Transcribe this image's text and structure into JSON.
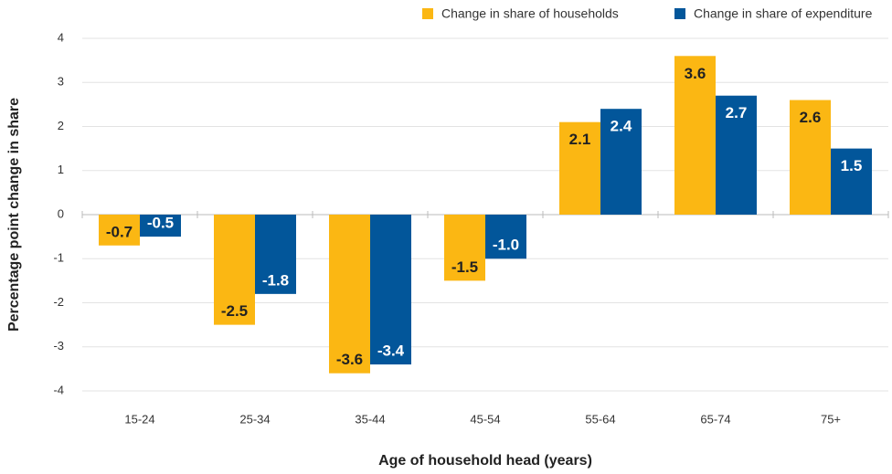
{
  "chart_data": {
    "type": "bar",
    "x_label": "Age of household head (years)",
    "y_label": "Percentage point change in share",
    "categories": [
      "15-24",
      "25-34",
      "35-44",
      "45-54",
      "55-64",
      "65-74",
      "75+"
    ],
    "series": [
      {
        "name": "Change in share of households",
        "color": "#fbb713",
        "label_color": "#222222",
        "values": [
          -0.7,
          -2.5,
          -3.6,
          -1.5,
          2.1,
          3.6,
          2.6
        ],
        "value_labels": [
          "-0.7",
          "-2.5",
          "-3.6",
          "-1.5",
          "2.1",
          "3.6",
          "2.6"
        ]
      },
      {
        "name": "Change in share of expenditure",
        "color": "#02569a",
        "label_color": "#ffffff",
        "values": [
          -0.5,
          -1.8,
          -3.4,
          -1.0,
          2.4,
          2.7,
          1.5
        ],
        "value_labels": [
          "-0.5",
          "-1.8",
          "-3.4",
          "-1.0",
          "2.4",
          "2.7",
          "1.5"
        ]
      }
    ],
    "ylim": [
      -4,
      4
    ],
    "yticks": [
      4,
      3,
      2,
      1,
      0,
      -1,
      -2,
      -3,
      -4
    ],
    "grid": true,
    "legend": "top-right"
  }
}
